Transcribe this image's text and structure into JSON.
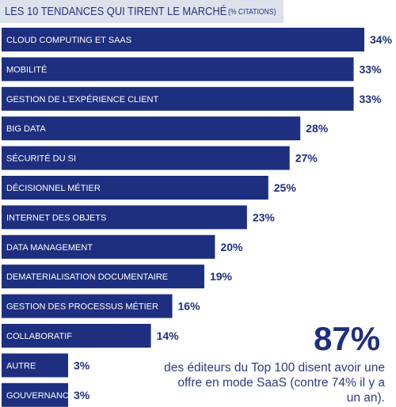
{
  "header": {
    "title": "LES 10 TENDANCES QUI TIRENT LE MARCHÉ",
    "subtitle": "(% CITATIONS)"
  },
  "colors": {
    "bar": "#1e2f7f",
    "title_bg": "#dde1ec",
    "text": "#1e2f7f"
  },
  "chart_data": {
    "type": "bar",
    "orientation": "horizontal",
    "title": "LES 10 TENDANCES QUI TIRENT LE MARCHÉ (% CITATIONS)",
    "categories": [
      "CLOUD COMPUTING ET SAAS",
      "MOBILITÉ",
      "GESTION DE L'EXPÉRIENCE CLIENT",
      "BIG DATA",
      "SÉCURITÉ DU SI",
      "DÉCISIONNEL MÉTIER",
      "INTERNET DES OBJETS",
      "DATA MANAGEMENT",
      "DEMATERIALISATION DOCUMENTAIRE",
      "GESTION DES PROCESSUS MÉTIER",
      "COLLABORATIF",
      "AUTRE",
      "GOUVERNANCE IT"
    ],
    "values": [
      34,
      33,
      33,
      28,
      27,
      25,
      23,
      20,
      19,
      16,
      14,
      3,
      3
    ],
    "value_labels": [
      "34%",
      "33%",
      "33%",
      "28%",
      "27%",
      "25%",
      "23%",
      "20%",
      "19%",
      "16%",
      "14%",
      "3%",
      "3%"
    ],
    "unit": "%"
  },
  "callout": {
    "value": "87%",
    "text": "des éditeurs du Top 100 disent avoir une offre en mode SaaS (contre 74% il y a un an)."
  }
}
